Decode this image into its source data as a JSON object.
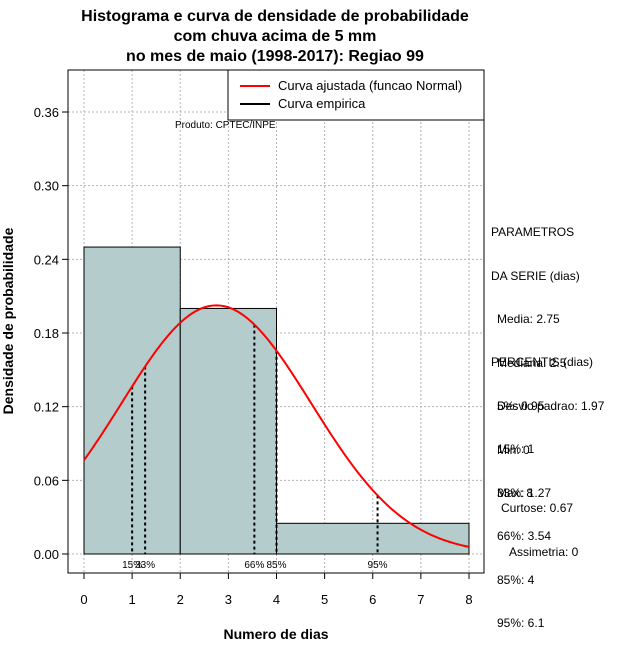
{
  "chart_data": {
    "type": "histogram",
    "title_lines": [
      "Histograma e curva de densidade de probabilidade",
      "com chuva acima de 5 mm",
      "no mes de maio (1998-2017): Regiao 99"
    ],
    "xlabel": "Numero de dias",
    "ylabel": "Densidade de probabilidade",
    "xlim": [
      0,
      8
    ],
    "ylim": [
      0,
      0.36
    ],
    "x_ticks": [
      0,
      1,
      2,
      3,
      4,
      5,
      6,
      7,
      8
    ],
    "x_tick_labels": [
      "0",
      "1",
      "2",
      "3",
      "4",
      "5",
      "6",
      "7",
      "8"
    ],
    "y_ticks": [
      0.0,
      0.06,
      0.12,
      0.18,
      0.24,
      0.3,
      0.36
    ],
    "y_tick_labels": [
      "0.00",
      "0.06",
      "0.12",
      "0.18",
      "0.24",
      "0.30",
      "0.36"
    ],
    "grid": true,
    "bins": [
      {
        "x0": 0,
        "x1": 2,
        "density": 0.25
      },
      {
        "x0": 2,
        "x1": 4,
        "density": 0.2
      },
      {
        "x0": 4,
        "x1": 8,
        "density": 0.025
      }
    ],
    "fitted_curve": {
      "name": "Curva ajustada (funcao Normal)",
      "distribution": "normal",
      "mean": 2.75,
      "sd": 1.97,
      "color": "#ff0000"
    },
    "empirical_curve": {
      "name": "Curva empirica",
      "color": "#000000"
    },
    "legend_position": "top-right",
    "source_note": "Produto: CPTEC/INPE",
    "percentile_markers": [
      {
        "label": "15%",
        "x": 1.0
      },
      {
        "label": "33%",
        "x": 1.27
      },
      {
        "label": "66%",
        "x": 3.54
      },
      {
        "label": "85%",
        "x": 4.0
      },
      {
        "label": "95%",
        "x": 6.1
      }
    ],
    "bar_color": "#b4cccc"
  },
  "parametros": {
    "title_line1": "PARAMETROS",
    "title_line2": "DA SERIE (dias)",
    "items": [
      "Media: 2.75",
      "Mediana: 2.5",
      "Desvio padrao: 1.97",
      "Min: 0",
      "Max: 8"
    ]
  },
  "percentis": {
    "title": "PERCENTIS (dias)",
    "items": [
      "5%: 0.95",
      "15%: 1",
      "33%: 1.27",
      "66%: 3.54",
      "85%: 4",
      "95%: 6.1"
    ]
  },
  "shape": {
    "curtose": "Curtose: 0.67",
    "assimetria": "Assimetria: 0"
  }
}
